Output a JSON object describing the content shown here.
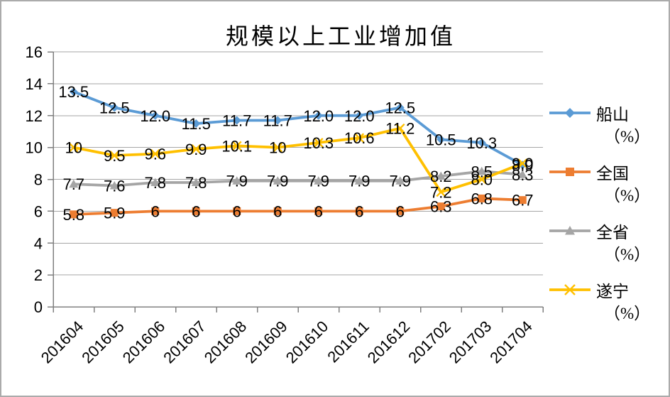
{
  "window": {
    "background": "#ffffff",
    "frame_border_color": "#ababab"
  },
  "chart_data": {
    "type": "line",
    "title": "规模以上工业增加值",
    "categories": [
      "201604",
      "201605",
      "201606",
      "201607",
      "201608",
      "201609",
      "201610",
      "201611",
      "201612",
      "201702",
      "201703",
      "201704"
    ],
    "y_axis": {
      "min": 0,
      "max": 16,
      "step": 2,
      "tick_labels": [
        "0",
        "2",
        "4",
        "6",
        "8",
        "10",
        "12",
        "14",
        "16"
      ]
    },
    "grid": true,
    "legend_position": "right",
    "colors": {
      "gridline": "#a6a6a6",
      "axis": "#808080",
      "label_text": "#000000"
    },
    "series": [
      {
        "name": "船山",
        "unit": "（%）",
        "color": "#5B9BD5",
        "marker": "diamond",
        "values": [
          13.5,
          12.5,
          12.0,
          11.5,
          11.7,
          11.7,
          12.0,
          12.0,
          12.5,
          10.5,
          10.3,
          8.9
        ],
        "labels": [
          "13.5",
          "12.5",
          "12.0",
          "11.5",
          "11.7",
          "11.7",
          "12.0",
          "12.0",
          "12.5",
          "10.5",
          "10.3",
          "8.9"
        ]
      },
      {
        "name": "全国",
        "unit": "（%）",
        "color": "#ED7D31",
        "marker": "square",
        "values": [
          5.8,
          5.9,
          6,
          6,
          6,
          6,
          6,
          6,
          6,
          6.3,
          6.8,
          6.7
        ],
        "labels": [
          "5.8",
          "5.9",
          "6",
          "6",
          "6",
          "6",
          "6",
          "6",
          "6",
          "6.3",
          "6.8",
          "6.7"
        ]
      },
      {
        "name": "全省",
        "unit": "（%）",
        "color": "#A5A5A5",
        "marker": "triangle",
        "values": [
          7.7,
          7.6,
          7.8,
          7.8,
          7.9,
          7.9,
          7.9,
          7.9,
          7.9,
          8.2,
          8.5,
          8.3
        ],
        "labels": [
          "7.7",
          "7.6",
          "7.8",
          "7.8",
          "7.9",
          "7.9",
          "7.9",
          "7.9",
          "7.9",
          "8.2",
          "8.5",
          "8.3"
        ]
      },
      {
        "name": "遂宁",
        "unit": "（%）",
        "color": "#FFC000",
        "marker": "x",
        "values": [
          10,
          9.5,
          9.6,
          9.9,
          10.1,
          10,
          10.3,
          10.6,
          11.2,
          7.2,
          8.0,
          9.0
        ],
        "labels": [
          "10",
          "9.5",
          "9.6",
          "9.9",
          "10.1",
          "10",
          "10.3",
          "10.6",
          "11.2",
          "7.2",
          "8.0",
          "9.0"
        ]
      }
    ]
  }
}
